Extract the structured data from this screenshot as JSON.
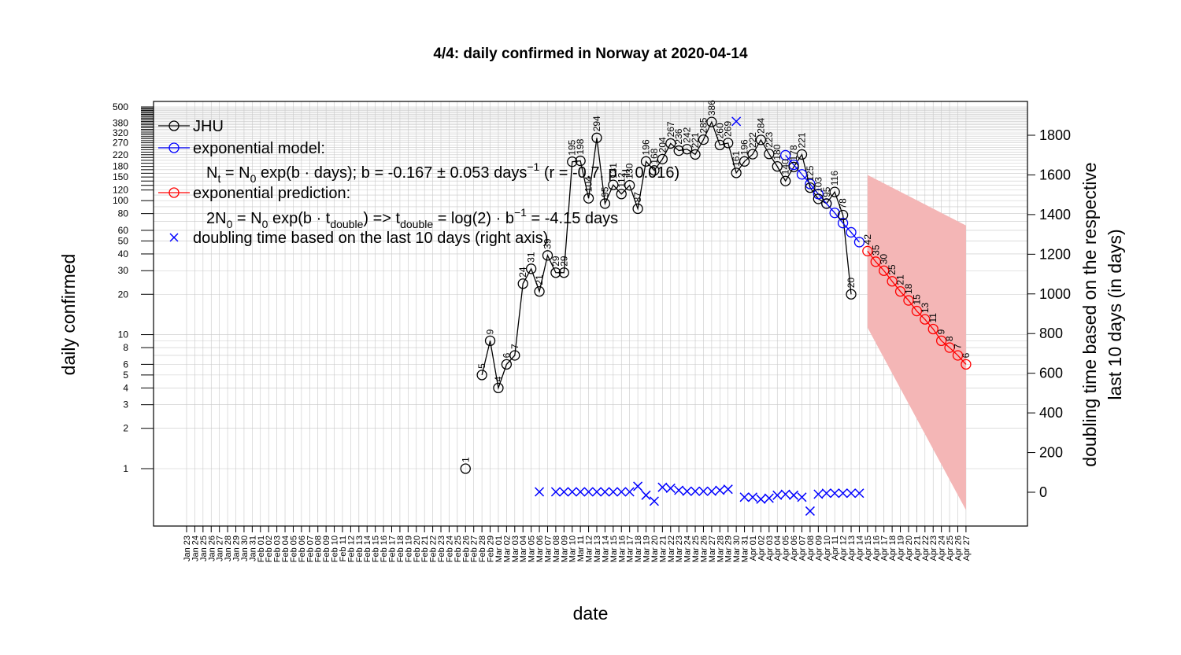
{
  "chart_data": {
    "type": "scatter",
    "title": "4/4: daily confirmed in Norway at 2020-04-14",
    "xlabel": "date",
    "ylabel": "daily confirmed",
    "ylabel_right_line1": "doubling time based on the respective",
    "ylabel_right_line2": "last 10 days (in days)",
    "y_scale": "log",
    "ylim": [
      0.5,
      500
    ],
    "y2lim": [
      -180,
      1830
    ],
    "grid": true,
    "legend_position": "top-left",
    "x_dates": [
      "Jan 23",
      "Jan 24",
      "Jan 25",
      "Jan 26",
      "Jan 27",
      "Jan 28",
      "Jan 29",
      "Jan 30",
      "Jan 31",
      "Feb 01",
      "Feb 02",
      "Feb 03",
      "Feb 04",
      "Feb 05",
      "Feb 06",
      "Feb 07",
      "Feb 08",
      "Feb 09",
      "Feb 10",
      "Feb 11",
      "Feb 12",
      "Feb 13",
      "Feb 14",
      "Feb 15",
      "Feb 16",
      "Feb 17",
      "Feb 18",
      "Feb 19",
      "Feb 20",
      "Feb 21",
      "Feb 22",
      "Feb 23",
      "Feb 24",
      "Feb 25",
      "Feb 26",
      "Feb 27",
      "Feb 28",
      "Feb 29",
      "Mar 01",
      "Mar 02",
      "Mar 03",
      "Mar 04",
      "Mar 05",
      "Mar 06",
      "Mar 07",
      "Mar 08",
      "Mar 09",
      "Mar 10",
      "Mar 11",
      "Mar 12",
      "Mar 13",
      "Mar 14",
      "Mar 15",
      "Mar 16",
      "Mar 17",
      "Mar 18",
      "Mar 19",
      "Mar 20",
      "Mar 21",
      "Mar 22",
      "Mar 23",
      "Mar 24",
      "Mar 25",
      "Mar 26",
      "Mar 27",
      "Mar 28",
      "Mar 29",
      "Mar 30",
      "Mar 31",
      "Apr 01",
      "Apr 02",
      "Apr 03",
      "Apr 04",
      "Apr 05",
      "Apr 06",
      "Apr 07",
      "Apr 08",
      "Apr 09",
      "Apr 10",
      "Apr 11",
      "Apr 12",
      "Apr 13",
      "Apr 14",
      "Apr 15",
      "Apr 16",
      "Apr 17",
      "Apr 18",
      "Apr 19",
      "Apr 20",
      "Apr 21",
      "Apr 22",
      "Apr 23",
      "Apr 24",
      "Apr 25",
      "Apr 26",
      "Apr 27"
    ],
    "y_left_ticks": [
      1,
      2,
      3,
      4,
      5,
      6,
      8,
      10,
      20,
      30,
      40,
      50,
      60,
      80,
      100,
      120,
      150,
      180,
      220,
      270,
      320,
      380,
      500
    ],
    "y_right_ticks": [
      0,
      200,
      400,
      600,
      800,
      1000,
      1200,
      1400,
      1600,
      1800
    ],
    "series": [
      {
        "name": "JHU",
        "color": "#000000",
        "points": [
          [
            "Feb 26",
            1
          ],
          [
            "Feb 28",
            5
          ],
          [
            "Feb 29",
            9
          ],
          [
            "Mar 01",
            4
          ],
          [
            "Mar 02",
            6
          ],
          [
            "Mar 03",
            7
          ],
          [
            "Mar 04",
            24
          ],
          [
            "Mar 05",
            31
          ],
          [
            "Mar 06",
            21
          ],
          [
            "Mar 07",
            39
          ],
          [
            "Mar 08",
            29
          ],
          [
            "Mar 09",
            29
          ],
          [
            "Mar 10",
            195
          ],
          [
            "Mar 11",
            198
          ],
          [
            "Mar 12",
            104
          ],
          [
            "Mar 13",
            294
          ],
          [
            "Mar 14",
            95
          ],
          [
            "Mar 15",
            131
          ],
          [
            "Mar 16",
            112
          ],
          [
            "Mar 17",
            130
          ],
          [
            "Mar 18",
            87
          ],
          [
            "Mar 19",
            196
          ],
          [
            "Mar 20",
            168
          ],
          [
            "Mar 21",
            204
          ],
          [
            "Mar 22",
            267
          ],
          [
            "Mar 23",
            236
          ],
          [
            "Mar 24",
            242
          ],
          [
            "Mar 25",
            221
          ],
          [
            "Mar 26",
            285
          ],
          [
            "Mar 27",
            386
          ],
          [
            "Mar 28",
            260
          ],
          [
            "Mar 29",
            269
          ],
          [
            "Mar 30",
            161
          ],
          [
            "Mar 31",
            196
          ],
          [
            "Apr 01",
            222
          ],
          [
            "Apr 02",
            284
          ],
          [
            "Apr 03",
            223
          ],
          [
            "Apr 04",
            180
          ],
          [
            "Apr 05",
            140
          ],
          [
            "Apr 06",
            178
          ],
          [
            "Apr 07",
            221
          ],
          [
            "Apr 08",
            125
          ],
          [
            "Apr 09",
            103
          ],
          [
            "Apr 10",
            95
          ],
          [
            "Apr 11",
            116
          ],
          [
            "Apr 12",
            78
          ],
          [
            "Apr 13",
            20
          ]
        ],
        "labels": [
          "1",
          "5",
          "9",
          "4",
          "6",
          "7",
          "24",
          "31",
          "21",
          "39",
          "29",
          "29",
          "195",
          "198",
          "104",
          "294",
          "95",
          "131",
          "112",
          "130",
          "87",
          "196",
          "168",
          "204",
          "267",
          "236",
          "242",
          "221",
          "285",
          "386",
          "260",
          "269",
          "161",
          "196",
          "222",
          "284",
          "223",
          "180",
          "140",
          "178",
          "221",
          "125",
          "103",
          "95",
          "116",
          "78",
          "20"
        ]
      },
      {
        "name": "exponential model:",
        "color": "#0000ff",
        "points": [
          [
            "Apr 05",
            218
          ],
          [
            "Apr 06",
            185
          ],
          [
            "Apr 07",
            157
          ],
          [
            "Apr 08",
            133
          ],
          [
            "Apr 09",
            112
          ],
          [
            "Apr 10",
            95
          ],
          [
            "Apr 11",
            81
          ],
          [
            "Apr 12",
            68
          ],
          [
            "Apr 13",
            58
          ],
          [
            "Apr 14",
            49
          ]
        ]
      },
      {
        "name": "exponential prediction:",
        "color": "#ff0000",
        "points": [
          [
            "Apr 15",
            42
          ],
          [
            "Apr 16",
            35
          ],
          [
            "Apr 17",
            30
          ],
          [
            "Apr 18",
            25
          ],
          [
            "Apr 19",
            21
          ],
          [
            "Apr 20",
            18
          ],
          [
            "Apr 21",
            15
          ],
          [
            "Apr 22",
            13
          ],
          [
            "Apr 23",
            11
          ],
          [
            "Apr 24",
            9
          ],
          [
            "Apr 25",
            8
          ],
          [
            "Apr 26",
            7
          ],
          [
            "Apr 27",
            6
          ]
        ],
        "labels": [
          "42",
          "35",
          "30",
          "25",
          "21",
          "18",
          "15",
          "13",
          "11",
          "9",
          "8",
          "7",
          "6"
        ],
        "band": {
          "start": "Apr 15",
          "end": "Apr 27",
          "upper": [
            1600,
            1345
          ],
          "lower": [
            830,
            -90
          ],
          "color": "#f4b6b6"
        }
      },
      {
        "name": "doubling time based on the last  10  days (right axis)",
        "color": "#0000ff",
        "axis": "right",
        "points": [
          [
            "Mar 06",
            2
          ],
          [
            "Mar 08",
            2
          ],
          [
            "Mar 09",
            2
          ],
          [
            "Mar 10",
            2
          ],
          [
            "Mar 11",
            2
          ],
          [
            "Mar 12",
            2
          ],
          [
            "Mar 13",
            2
          ],
          [
            "Mar 14",
            2
          ],
          [
            "Mar 15",
            2
          ],
          [
            "Mar 16",
            2
          ],
          [
            "Mar 17",
            2
          ],
          [
            "Mar 18",
            30
          ],
          [
            "Mar 19",
            -15
          ],
          [
            "Mar 20",
            -45
          ],
          [
            "Mar 21",
            25
          ],
          [
            "Mar 22",
            20
          ],
          [
            "Mar 23",
            10
          ],
          [
            "Mar 24",
            5
          ],
          [
            "Mar 25",
            5
          ],
          [
            "Mar 26",
            5
          ],
          [
            "Mar 27",
            5
          ],
          [
            "Mar 28",
            10
          ],
          [
            "Mar 29",
            15
          ],
          [
            "Mar 30",
            1870
          ],
          [
            "Mar 31",
            -25
          ],
          [
            "Apr 01",
            -25
          ],
          [
            "Apr 02",
            -35
          ],
          [
            "Apr 03",
            -30
          ],
          [
            "Apr 04",
            -15
          ],
          [
            "Apr 05",
            -10
          ],
          [
            "Apr 06",
            -15
          ],
          [
            "Apr 07",
            -25
          ],
          [
            "Apr 08",
            -95
          ],
          [
            "Apr 09",
            -10
          ],
          [
            "Apr 10",
            -5
          ],
          [
            "Apr 11",
            -5
          ],
          [
            "Apr 12",
            -5
          ],
          [
            "Apr 13",
            -5
          ],
          [
            "Apr 14",
            -5
          ]
        ]
      }
    ],
    "legend": {
      "items": [
        {
          "label": "JHU",
          "color": "#000000",
          "symbol": "line-circle"
        },
        {
          "label": "exponential model:",
          "color": "#0000ff",
          "symbol": "line-circle"
        },
        {
          "label": "exponential prediction:",
          "color": "#ff0000",
          "symbol": "line-circle"
        },
        {
          "label": "doubling time based on the last  10  days (right axis)",
          "color": "#0000ff",
          "symbol": "cross"
        }
      ],
      "model_line": {
        "a": "N",
        "a_sub": "t",
        "b": " = N",
        "b_sub": "0",
        "c": " exp(b · days); b = -0.167 ± 0.053 days",
        "c_sup": "−1",
        "d": " (r = -0.7, p = 0.016)"
      },
      "prediction_line": {
        "a": "2N",
        "a_sub": "0",
        "b": " = N",
        "b_sub": "0",
        "c": " exp(b · t",
        "c_sub": "double",
        "d": ") => t",
        "d_sub": "double",
        "e": " = log(2) · b",
        "e_sup": "−1",
        "f": " = -4.15 days"
      }
    }
  }
}
